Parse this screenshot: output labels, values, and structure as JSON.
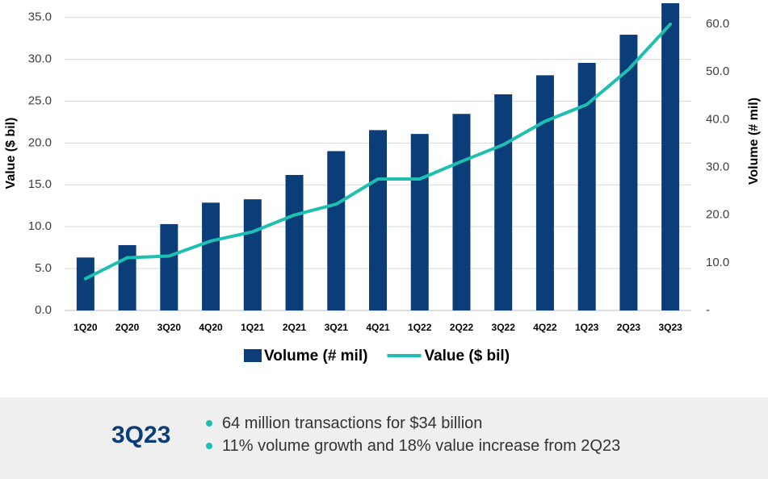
{
  "chart_data": {
    "type": "bar-line",
    "categories": [
      "1Q20",
      "2Q20",
      "3Q20",
      "4Q20",
      "1Q21",
      "2Q21",
      "3Q21",
      "4Q21",
      "1Q22",
      "2Q22",
      "3Q22",
      "4Q22",
      "1Q23",
      "2Q23",
      "3Q23"
    ],
    "series": [
      {
        "name": "Volume (# mil)",
        "color": "#0b3d78",
        "type": "bar",
        "axis": "y2",
        "values": [
          11.1,
          13.7,
          18.1,
          22.6,
          23.3,
          28.4,
          33.4,
          37.8,
          37.0,
          41.2,
          45.3,
          49.3,
          51.9,
          57.8,
          64.4
        ]
      },
      {
        "name": "Value ($ bil)",
        "color": "#1dbfb1",
        "type": "line",
        "axis": "y",
        "values": [
          3.8,
          6.3,
          6.5,
          8.3,
          9.4,
          11.4,
          12.7,
          15.7,
          15.7,
          17.8,
          19.8,
          22.6,
          24.6,
          28.8,
          34.2
        ]
      }
    ],
    "ylabel": "Value ($ bil)",
    "y2label": "Volume (# mil)",
    "ylim": [
      0,
      36.7
    ],
    "y2lim": [
      0,
      64.4
    ],
    "yticks": [
      {
        "value": 0,
        "label": "0.0"
      },
      {
        "value": 5,
        "label": "5.0"
      },
      {
        "value": 10,
        "label": "10.0"
      },
      {
        "value": 15,
        "label": "15.0"
      },
      {
        "value": 20,
        "label": "20.0"
      },
      {
        "value": 25,
        "label": "25.0"
      },
      {
        "value": 30,
        "label": "30.0"
      },
      {
        "value": 35,
        "label": "35.0"
      }
    ],
    "y2ticks": [
      {
        "value": 0,
        "label": "-"
      },
      {
        "value": 10,
        "label": "10.0"
      },
      {
        "value": 20,
        "label": "20.0"
      },
      {
        "value": 30,
        "label": "30.0"
      },
      {
        "value": 40,
        "label": "40.0"
      },
      {
        "value": 50,
        "label": "50.0"
      },
      {
        "value": 60,
        "label": "60.0"
      }
    ],
    "grid": true
  },
  "summary": {
    "label": "3Q23",
    "bullets": [
      "64 million transactions for $34 billion",
      "11% volume growth and 18% value increase from 2Q23"
    ]
  }
}
